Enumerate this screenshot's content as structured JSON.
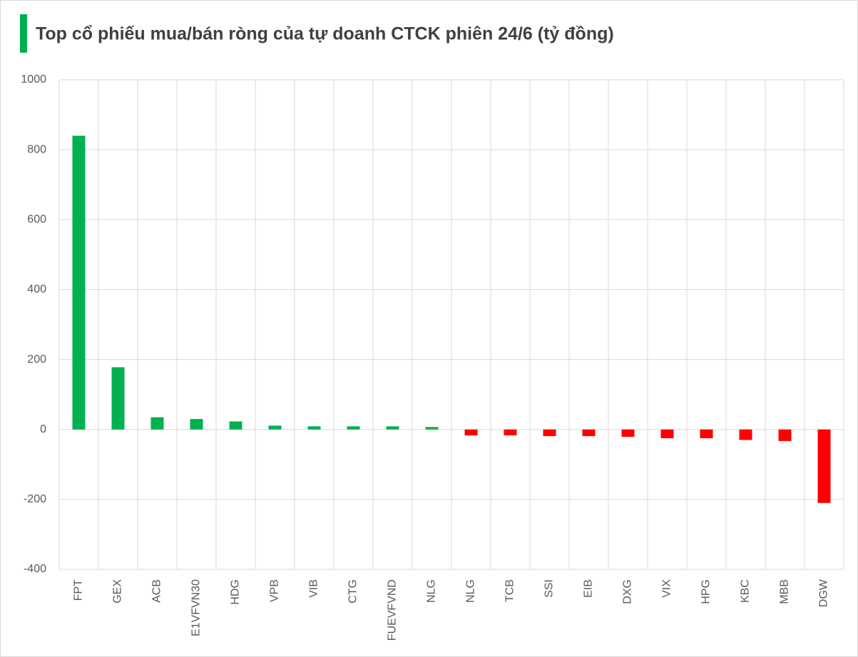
{
  "chart_data": {
    "type": "bar",
    "title": "Top cổ phiếu mua/bán ròng của tự doanh CTCK phiên 24/6 (tỷ đồng)",
    "categories": [
      "FPT",
      "GEX",
      "ACB",
      "E1VFVN30",
      "HDG",
      "VPB",
      "VIB",
      "CTG",
      "FUEVFVND",
      "NLG",
      "NLG",
      "TCB",
      "SSI",
      "EIB",
      "DXG",
      "VIX",
      "HPG",
      "KBC",
      "MBB",
      "DGW"
    ],
    "values": [
      840,
      178,
      35,
      30,
      23,
      11,
      9,
      9,
      9,
      7,
      -17,
      -17,
      -19,
      -19,
      -21,
      -25,
      -25,
      -30,
      -33,
      -210
    ],
    "color_positive": "#00b050",
    "color_negative": "#ff0000",
    "ylim": [
      -400,
      1000
    ],
    "yticks": [
      -400,
      -200,
      0,
      200,
      400,
      600,
      800,
      1000
    ],
    "grid": true
  }
}
